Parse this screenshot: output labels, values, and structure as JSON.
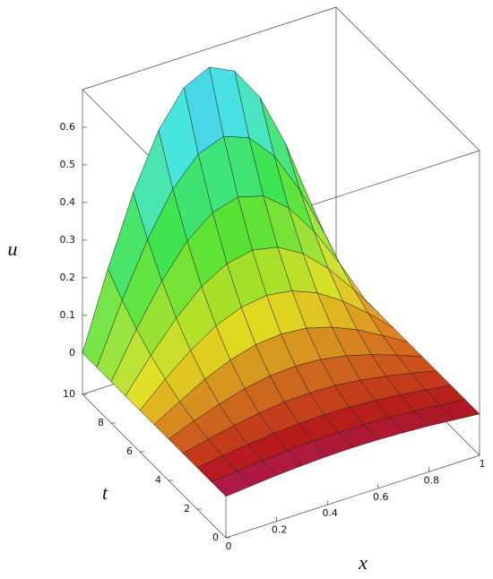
{
  "chart_data": {
    "type": "surface",
    "xlabel": "x",
    "tlabel": "t",
    "zlabel": "u",
    "x": [
      0,
      0.1,
      0.2,
      0.3,
      0.4,
      0.5,
      0.6,
      0.7,
      0.8,
      0.9,
      1
    ],
    "t": [
      0,
      1,
      2,
      3,
      4,
      5,
      6,
      7,
      8,
      9,
      10
    ],
    "z": [
      [
        0,
        0.006,
        0.012,
        0.016,
        0.019,
        0.02,
        0.019,
        0.016,
        0.012,
        0.006,
        0
      ],
      [
        0,
        0.007,
        0.013,
        0.018,
        0.021,
        0.022,
        0.021,
        0.018,
        0.013,
        0.007,
        0
      ],
      [
        0,
        0.01,
        0.018,
        0.025,
        0.029,
        0.031,
        0.029,
        0.025,
        0.018,
        0.01,
        0
      ],
      [
        0,
        0.016,
        0.03,
        0.041,
        0.049,
        0.051,
        0.049,
        0.041,
        0.03,
        0.016,
        0
      ],
      [
        0,
        0.026,
        0.049,
        0.068,
        0.08,
        0.084,
        0.08,
        0.068,
        0.049,
        0.026,
        0
      ],
      [
        0,
        0.04,
        0.077,
        0.106,
        0.125,
        0.131,
        0.125,
        0.106,
        0.077,
        0.04,
        0
      ],
      [
        0,
        0.061,
        0.115,
        0.159,
        0.186,
        0.196,
        0.186,
        0.159,
        0.115,
        0.061,
        0
      ],
      [
        0,
        0.086,
        0.163,
        0.225,
        0.264,
        0.278,
        0.264,
        0.225,
        0.163,
        0.086,
        0
      ],
      [
        0,
        0.118,
        0.224,
        0.308,
        0.362,
        0.381,
        0.362,
        0.308,
        0.224,
        0.118,
        0
      ],
      [
        0,
        0.156,
        0.296,
        0.408,
        0.479,
        0.504,
        0.479,
        0.408,
        0.296,
        0.156,
        0
      ],
      [
        0,
        0.201,
        0.382,
        0.526,
        0.618,
        0.65,
        0.618,
        0.526,
        0.382,
        0.201,
        0
      ]
    ],
    "xlim": [
      0,
      1
    ],
    "tlim": [
      0,
      10
    ],
    "zlim": [
      -0.11,
      0.7
    ],
    "xticks": [
      0,
      0.2,
      0.4,
      0.6,
      0.8,
      1
    ],
    "tticks": [
      0,
      2,
      4,
      6,
      8,
      10
    ],
    "zticks": [
      0,
      0.1,
      0.2,
      0.3,
      0.4,
      0.5,
      0.6
    ]
  }
}
